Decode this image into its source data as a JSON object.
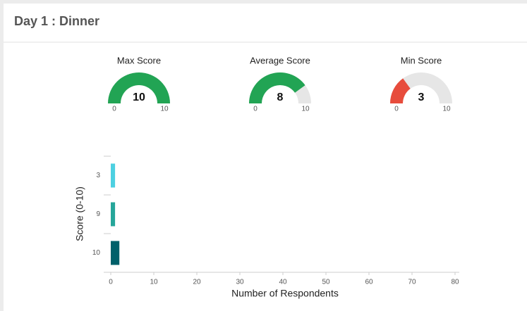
{
  "header": {
    "title": "Day 1 : Dinner"
  },
  "chart_data": [
    {
      "type": "gauge",
      "title": "Max Score",
      "value": 10,
      "min": 0,
      "max": 10,
      "color": "#22a454"
    },
    {
      "type": "gauge",
      "title": "Average Score",
      "value": 8,
      "min": 0,
      "max": 10,
      "color": "#22a454"
    },
    {
      "type": "gauge",
      "title": "Min Score",
      "value": 3,
      "min": 0,
      "max": 10,
      "color": "#e74c3c"
    },
    {
      "type": "barh",
      "categories": [
        "3",
        "9",
        "10"
      ],
      "values": [
        1,
        1,
        2
      ],
      "colors": [
        "#4dd0e1",
        "#26a69a",
        "#00606a"
      ],
      "xlim": [
        0,
        80
      ],
      "xticks": [
        0,
        10,
        20,
        30,
        40,
        50,
        60,
        70,
        80
      ],
      "xlabel": "Number of Respondents",
      "ylabel": "Score (0-10)"
    }
  ]
}
